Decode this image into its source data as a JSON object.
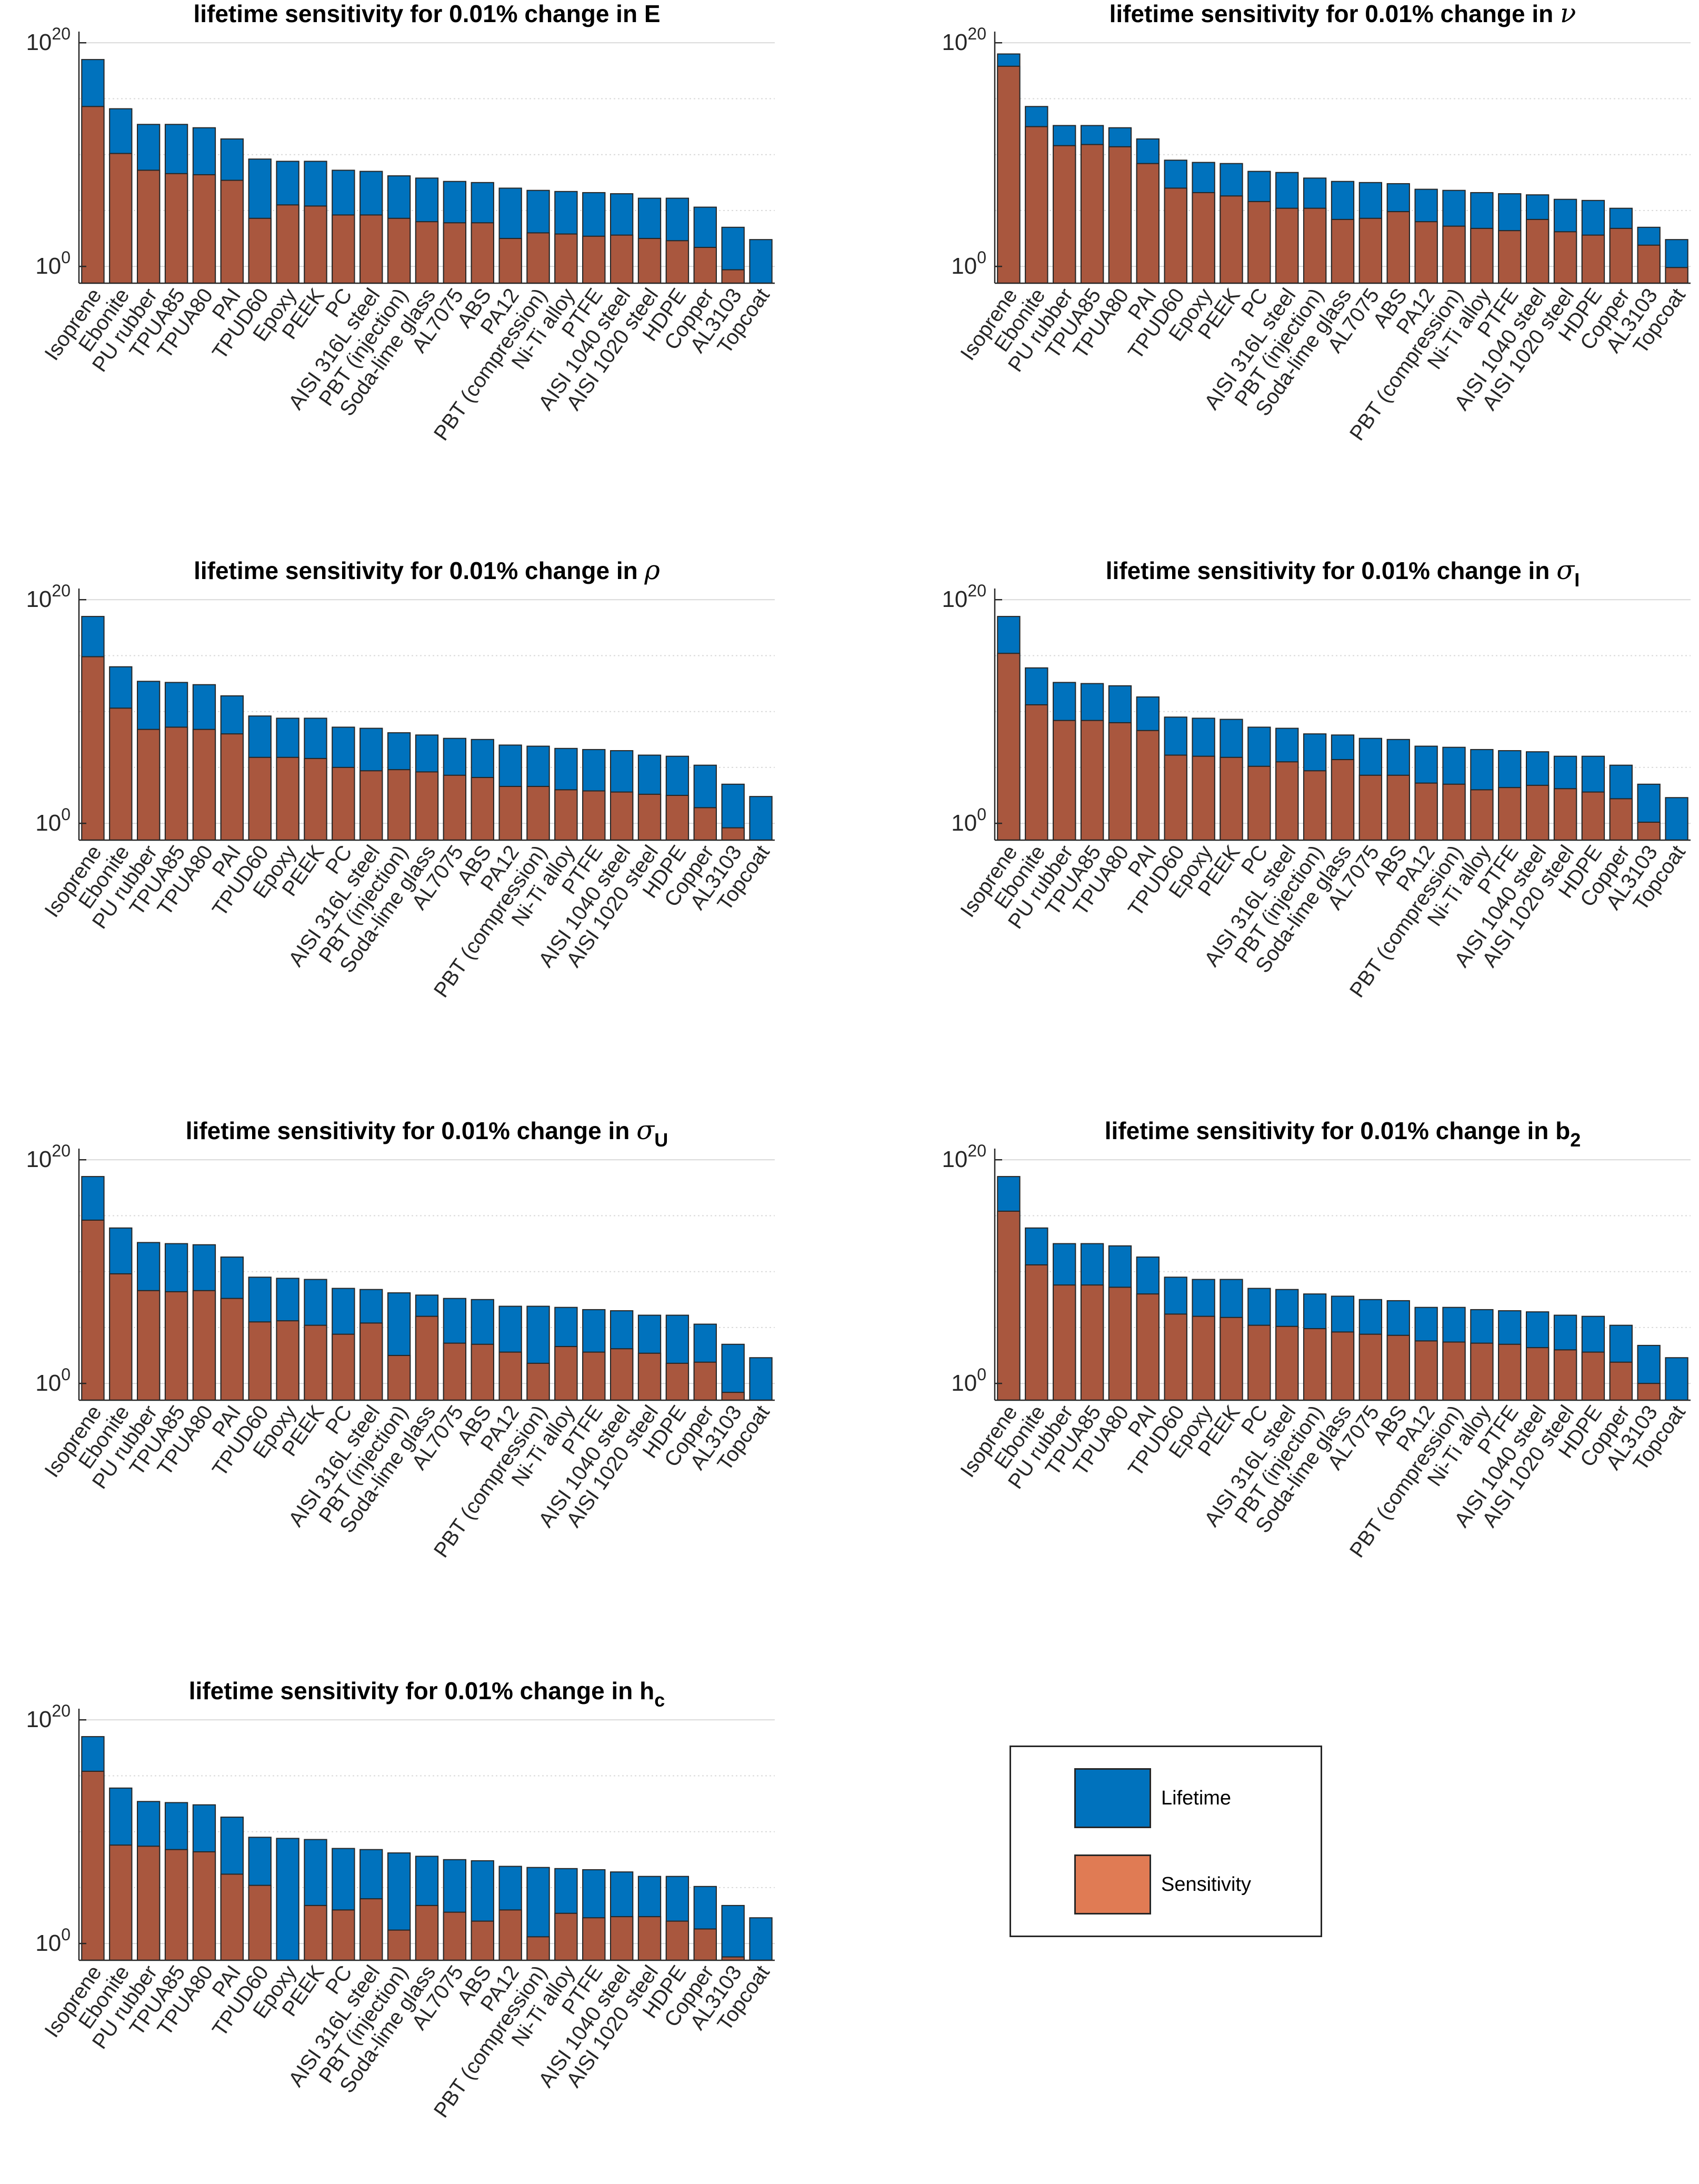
{
  "figure": {
    "categories": [
      "Isoprene",
      "Ebonite",
      "PU rubber",
      "TPUA85",
      "TPUA80",
      "PAI",
      "TPUD60",
      "Epoxy",
      "PEEK",
      "PC",
      "AISI 316L steel",
      "PBT (injection)",
      "Soda-lime glass",
      "AL7075",
      "ABS",
      "PA12",
      "PBT (compression)",
      "Ni-Ti alloy",
      "PTFE",
      "AISI 1040 steel",
      "AISI 1020 steel",
      "HDPE",
      "Copper",
      "AL3103",
      "Topcoat"
    ],
    "y_tick_labels": [
      {
        "base": "10",
        "exp": "0"
      },
      {
        "base": "10",
        "exp": "20"
      }
    ],
    "colors": {
      "lifetime": "#0072BD",
      "sensitivity": "#A9573E",
      "legend_sensitivity": "#D95319",
      "grid": "#d9d9d9"
    },
    "legend": {
      "position": "bottom-right",
      "items": [
        {
          "label": "Lifetime",
          "color": "#0072BD"
        },
        {
          "label": "Sensitivity",
          "color": "#E07B54"
        }
      ]
    }
  },
  "chart_data": [
    {
      "type": "bar",
      "title_text": "lifetime sensitivity for 0.01% change in ",
      "title_symbol": "E",
      "title_symbol_style": "normal",
      "title_sub": "",
      "yscale": "log",
      "ylim_log10": [
        -1.5,
        21
      ],
      "ytick_log10": [
        0,
        20
      ],
      "series": [
        {
          "name": "Lifetime",
          "log10_values": [
            18.5,
            14.1,
            12.7,
            12.7,
            12.4,
            11.4,
            9.6,
            9.4,
            9.4,
            8.6,
            8.5,
            8.1,
            7.9,
            7.6,
            7.5,
            7.0,
            6.8,
            6.7,
            6.6,
            6.5,
            6.1,
            6.1,
            5.3,
            3.5,
            2.4
          ],
          "shown_at_axis": "Ebonite"
        },
        {
          "name": "Sensitivity",
          "log10_values": [
            14.3,
            10.1,
            8.6,
            8.3,
            8.2,
            7.7,
            4.3,
            5.5,
            5.4,
            4.6,
            4.6,
            4.3,
            4.0,
            3.9,
            3.9,
            2.5,
            3.0,
            2.9,
            2.7,
            2.8,
            2.5,
            2.3,
            1.7,
            -0.3,
            null
          ]
        }
      ]
    },
    {
      "type": "bar",
      "title_text": "lifetime sensitivity for 0.01% change in ",
      "title_symbol": "ν",
      "title_symbol_style": "italic-serif",
      "title_sub": "",
      "yscale": "log",
      "ylim_log10": [
        -1.5,
        21
      ],
      "ytick_log10": [
        0,
        20
      ],
      "series": [
        {
          "name": "Lifetime",
          "log10_values": [
            19.0,
            14.3,
            12.6,
            12.6,
            12.4,
            11.4,
            9.5,
            9.3,
            9.2,
            8.5,
            8.4,
            7.9,
            7.6,
            7.5,
            7.4,
            6.9,
            6.8,
            6.6,
            6.5,
            6.4,
            6.0,
            5.9,
            5.2,
            3.5,
            2.4
          ],
          "shown_at_axis": "Ebonite"
        },
        {
          "name": "Sensitivity",
          "log10_values": [
            17.9,
            12.5,
            10.8,
            10.9,
            10.7,
            9.2,
            7.0,
            6.6,
            6.3,
            5.8,
            5.2,
            5.2,
            4.2,
            4.3,
            4.9,
            4.0,
            3.6,
            3.4,
            3.2,
            4.2,
            3.1,
            2.8,
            3.4,
            1.9,
            -0.1
          ]
        }
      ]
    },
    {
      "type": "bar",
      "title_text": "lifetime sensitivity for 0.01% change in ",
      "title_symbol": "ρ",
      "title_symbol_style": "italic-serif",
      "title_sub": "",
      "yscale": "log",
      "ylim_log10": [
        -1.5,
        21
      ],
      "ytick_log10": [
        0,
        20
      ],
      "series": [
        {
          "name": "Lifetime",
          "log10_values": [
            18.5,
            14.0,
            12.7,
            12.6,
            12.4,
            11.4,
            9.6,
            9.4,
            9.4,
            8.6,
            8.5,
            8.1,
            7.9,
            7.6,
            7.5,
            7.0,
            6.9,
            6.7,
            6.6,
            6.5,
            6.1,
            6.0,
            5.2,
            3.5,
            2.4
          ],
          "shown_at_axis": "Ebonite"
        },
        {
          "name": "Sensitivity",
          "log10_values": [
            14.9,
            10.3,
            8.4,
            8.6,
            8.4,
            8.0,
            5.9,
            5.9,
            5.8,
            5.0,
            4.7,
            4.8,
            4.6,
            4.3,
            4.1,
            3.3,
            3.3,
            3.0,
            2.9,
            2.8,
            2.6,
            2.5,
            1.4,
            -0.4,
            null
          ]
        }
      ]
    },
    {
      "type": "bar",
      "title_text": "lifetime sensitivity for 0.01% change in ",
      "title_symbol": "σ",
      "title_symbol_style": "italic-serif",
      "title_sub": "I",
      "yscale": "log",
      "ylim_log10": [
        -1.5,
        21
      ],
      "ytick_log10": [
        0,
        20
      ],
      "series": [
        {
          "name": "Lifetime",
          "log10_values": [
            18.5,
            13.9,
            12.6,
            12.5,
            12.3,
            11.3,
            9.5,
            9.4,
            9.3,
            8.6,
            8.5,
            8.0,
            7.9,
            7.6,
            7.5,
            6.9,
            6.8,
            6.6,
            6.5,
            6.4,
            6.0,
            6.0,
            5.2,
            3.5,
            2.3
          ],
          "shown_at_axis": "Ebonite"
        },
        {
          "name": "Sensitivity",
          "log10_values": [
            15.2,
            10.6,
            9.2,
            9.2,
            9.0,
            8.3,
            6.1,
            6.0,
            5.9,
            5.1,
            5.5,
            4.7,
            5.7,
            4.3,
            4.3,
            3.6,
            3.5,
            3.0,
            3.2,
            3.4,
            3.1,
            2.8,
            2.2,
            0.1,
            null
          ]
        }
      ]
    },
    {
      "type": "bar",
      "title_text": "lifetime sensitivity for 0.01% change in ",
      "title_symbol": "σ",
      "title_symbol_style": "italic-serif",
      "title_sub": "U",
      "yscale": "log",
      "ylim_log10": [
        -1.5,
        21
      ],
      "ytick_log10": [
        0,
        20
      ],
      "series": [
        {
          "name": "Lifetime",
          "log10_values": [
            18.5,
            13.9,
            12.6,
            12.5,
            12.4,
            11.3,
            9.5,
            9.4,
            9.3,
            8.5,
            8.4,
            8.1,
            7.9,
            7.6,
            7.5,
            6.9,
            6.9,
            6.8,
            6.6,
            6.5,
            6.1,
            6.1,
            5.3,
            3.5,
            2.3
          ],
          "shown_at_axis": "Ebonite"
        },
        {
          "name": "Sensitivity",
          "log10_values": [
            14.6,
            9.8,
            8.3,
            8.2,
            8.3,
            7.6,
            5.5,
            5.6,
            5.2,
            4.4,
            5.4,
            2.5,
            6.0,
            3.6,
            3.5,
            2.8,
            1.8,
            3.3,
            2.8,
            3.1,
            2.7,
            1.8,
            1.9,
            -0.8,
            null
          ]
        }
      ]
    },
    {
      "type": "bar",
      "title_text": "lifetime sensitivity for 0.01% change in ",
      "title_symbol": "b",
      "title_symbol_style": "normal",
      "title_sub": "2",
      "yscale": "log",
      "ylim_log10": [
        -1.5,
        21
      ],
      "ytick_log10": [
        0,
        20
      ],
      "series": [
        {
          "name": "Lifetime",
          "log10_values": [
            18.5,
            13.9,
            12.5,
            12.5,
            12.3,
            11.3,
            9.5,
            9.3,
            9.3,
            8.5,
            8.4,
            8.0,
            7.8,
            7.5,
            7.4,
            6.8,
            6.8,
            6.6,
            6.5,
            6.4,
            6.1,
            6.0,
            5.2,
            3.4,
            2.3
          ],
          "shown_at_axis": "Ebonite"
        },
        {
          "name": "Sensitivity",
          "log10_values": [
            15.4,
            10.6,
            8.8,
            8.8,
            8.6,
            8.0,
            6.2,
            6.0,
            5.9,
            5.2,
            5.1,
            4.9,
            4.6,
            4.4,
            4.3,
            3.8,
            3.7,
            3.6,
            3.5,
            3.2,
            3.0,
            2.8,
            1.9,
            0.0,
            null
          ]
        }
      ]
    },
    {
      "type": "bar",
      "title_text": "lifetime sensitivity for 0.01% change in ",
      "title_symbol": "h",
      "title_symbol_style": "normal",
      "title_sub": "c",
      "yscale": "log",
      "ylim_log10": [
        -1.5,
        21
      ],
      "ytick_log10": [
        0,
        20
      ],
      "series": [
        {
          "name": "Lifetime",
          "log10_values": [
            18.5,
            13.9,
            12.7,
            12.6,
            12.4,
            11.3,
            9.5,
            9.4,
            9.3,
            8.5,
            8.4,
            8.1,
            7.8,
            7.5,
            7.4,
            6.9,
            6.8,
            6.7,
            6.6,
            6.4,
            6.0,
            6.0,
            5.1,
            3.4,
            2.3
          ],
          "shown_at_axis": "Ebonite"
        },
        {
          "name": "Sensitivity",
          "log10_values": [
            15.4,
            8.8,
            8.7,
            8.4,
            8.2,
            6.2,
            5.2,
            null,
            3.4,
            3.0,
            4.0,
            1.2,
            3.4,
            2.8,
            2.0,
            3.0,
            0.6,
            2.7,
            2.3,
            2.4,
            2.4,
            2.0,
            1.3,
            -1.2,
            null
          ]
        }
      ]
    }
  ]
}
